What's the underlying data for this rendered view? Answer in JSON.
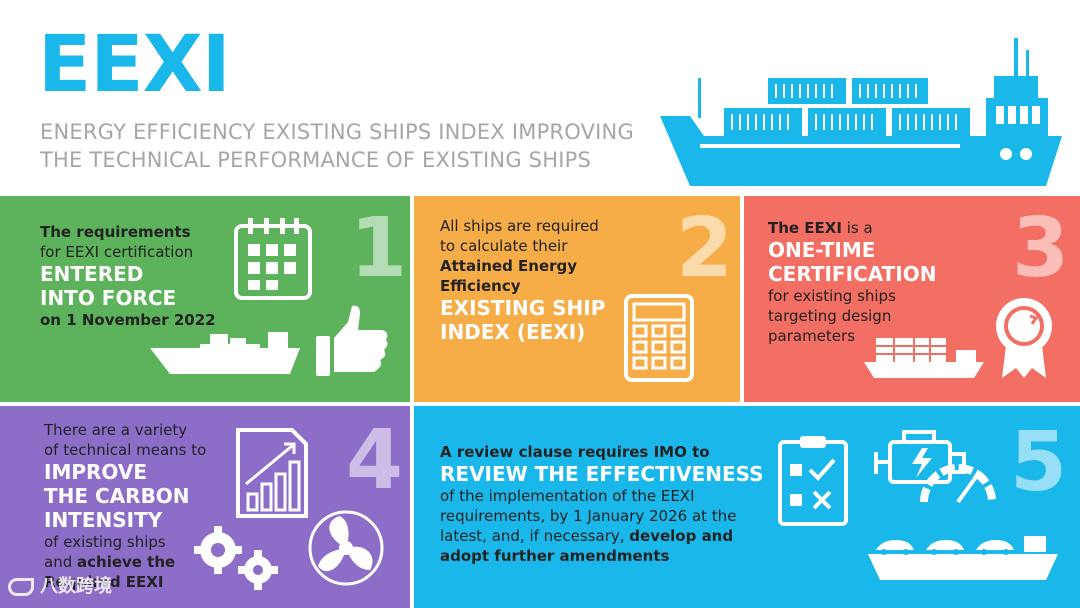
{
  "header": {
    "title": "EEXI",
    "subtitle_line1": "ENERGY EFFICIENCY EXISTING SHIPS INDEX IMPROVING",
    "subtitle_line2": "THE TECHNICAL PERFORMANCE OF EXISTING SHIPS"
  },
  "panels": {
    "p1": {
      "number": "1",
      "line1": "The requirements",
      "line2": "for EEXI certification",
      "highlight1": "ENTERED",
      "highlight2": "INTO FORCE",
      "line3": "on 1 November 2022"
    },
    "p2": {
      "number": "2",
      "line1": "All ships are required",
      "line2": "to calculate their",
      "bold1": "Attained Energy",
      "bold2": "Efficiency",
      "highlight1": "EXISTING SHIP",
      "highlight2": "INDEX (EEXI)"
    },
    "p3": {
      "number": "3",
      "line1_bold": "The EEXI",
      "line1_rest": " is a",
      "highlight1": "ONE-TIME",
      "highlight2": "CERTIFICATION",
      "line2": "for existing ships",
      "line3": "targeting design",
      "line4": "parameters"
    },
    "p4": {
      "number": "4",
      "line1": "There are a  variety",
      "line2": "of technical means to",
      "highlight1": "IMPROVE",
      "highlight2": "THE CARBON",
      "highlight3": "INTENSITY",
      "line3": "of existing ships",
      "line4_pre": "and ",
      "line4_bold": "achieve the",
      "line5_bold": "Required EEXI"
    },
    "p5": {
      "number": "5",
      "line1_bold": "A review clause requires IMO to",
      "highlight1": "REVIEW THE EFFECTIVENESS",
      "line2": "of the implementation of the EEXI",
      "line3": "requirements, by 1 January 2026 at the",
      "line4_pre": "latest, and, if necessary, ",
      "line4_bold": "develop and",
      "line5_bold": "adopt further amendments"
    }
  },
  "watermark": "八数跨境",
  "colors": {
    "accent": "#1ab8ea",
    "green": "#5cb35c",
    "orange": "#f6ad48",
    "red": "#f36e63",
    "purple": "#8c6ec8",
    "blue": "#1ab8ea"
  },
  "icons": [
    "ship-icon",
    "calendar-icon",
    "thumbs-up-icon",
    "cargo-ship-icon",
    "calculator-icon",
    "certificate-badge-icon",
    "container-ship-icon",
    "growth-chart-icon",
    "gears-icon",
    "propeller-icon",
    "checklist-icon",
    "engine-icon",
    "gauge-icon",
    "car-carrier-icon"
  ]
}
